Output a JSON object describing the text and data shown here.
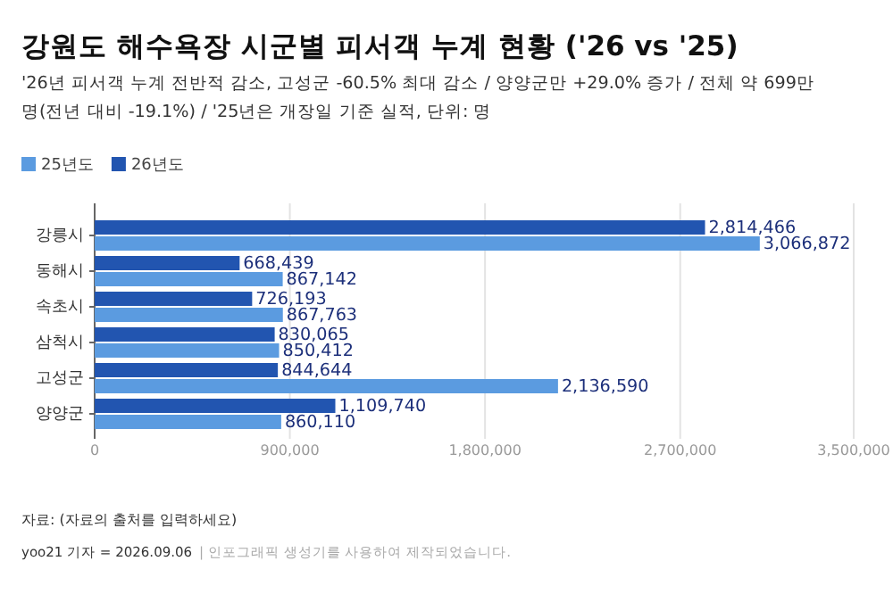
{
  "chart_data": {
    "type": "bar",
    "orientation": "horizontal",
    "title": "강원도 해수욕장 시군별 피서객 누계 현황 ('26 vs '25)",
    "subtitle": "'26년 피서객 누계 전반적 감소, 고성군 -60.5% 최대 감소 / 양양군만 +29.0% 증가 / 전체 약 699만 명(전년 대비 -19.1%) / '25년은 개장일 기준 실적, 단위: 명",
    "categories": [
      "강릉시",
      "동해시",
      "속초시",
      "삼척시",
      "고성군",
      "양양군"
    ],
    "series": [
      {
        "name": "25년도",
        "color": "#5b9be0",
        "values": [
          3066872,
          867142,
          867763,
          850412,
          2136590,
          860110
        ],
        "value_labels": [
          "3,066,872",
          "867,142",
          "867,763",
          "850,412",
          "2,136,590",
          "860,110"
        ]
      },
      {
        "name": "26년도",
        "color": "#2255b0",
        "values": [
          2814466,
          668439,
          726193,
          830065,
          844644,
          1109740
        ],
        "value_labels": [
          "2,814,466",
          "668,439",
          "726,193",
          "830,065",
          "844,644",
          "1,109,740"
        ]
      }
    ],
    "xlim": [
      0,
      3500000
    ],
    "xticks": [
      0,
      {
        "value": 900000,
        "label": "900,000"
      },
      {
        "value": 1800000,
        "label": "1,800,000"
      },
      {
        "value": 2700000,
        "label": "2,700,000"
      },
      {
        "value": 3500000,
        "label": "3,500,000"
      }
    ],
    "grid": "x",
    "legend": "top left",
    "annotations": [
      "자료: (자료의 출처를 입력하세요)",
      "yoo21 기자 = 2026.09.06",
      "| 인포그래픽 생성기를 사용하여 제작되었습니다."
    ]
  }
}
